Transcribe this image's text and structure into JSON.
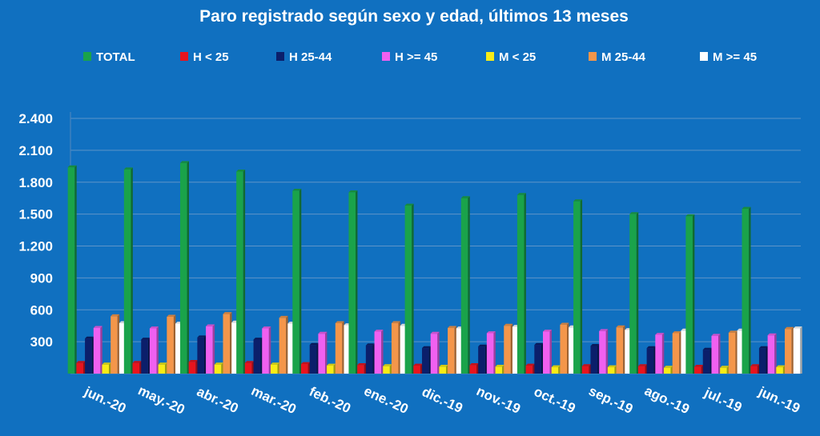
{
  "chart_data": {
    "type": "bar",
    "title": "Paro registrado según sexo y edad, últimos 13 meses",
    "categories": [
      "jun.-20",
      "may.-20",
      "abr.-20",
      "mar.-20",
      "feb.-20",
      "ene.-20",
      "dic.-19",
      "nov.-19",
      "oct.-19",
      "sep.-19",
      "ago.-19",
      "jul.-19",
      "jun.-19"
    ],
    "series": [
      {
        "name": "TOTAL",
        "color": "#1aa34a",
        "values": [
          1940,
          1920,
          1980,
          1900,
          1720,
          1705,
          1580,
          1650,
          1680,
          1620,
          1500,
          1480,
          1550
        ]
      },
      {
        "name": "H < 25",
        "color": "#e8141e",
        "values": [
          100,
          100,
          110,
          100,
          90,
          80,
          75,
          80,
          75,
          70,
          70,
          65,
          70
        ]
      },
      {
        "name": "H 25-44",
        "color": "#0b1f6b",
        "values": [
          330,
          320,
          340,
          320,
          270,
          265,
          240,
          255,
          270,
          260,
          240,
          225,
          240
        ]
      },
      {
        "name": "H >= 45",
        "color": "#f060f0",
        "values": [
          430,
          425,
          445,
          425,
          375,
          395,
          375,
          380,
          395,
          400,
          365,
          355,
          360
        ]
      },
      {
        "name": "M < 25",
        "color": "#f8ec16",
        "values": [
          85,
          85,
          85,
          85,
          75,
          70,
          65,
          65,
          60,
          60,
          55,
          55,
          60
        ]
      },
      {
        "name": "M 25-44",
        "color": "#f4964a",
        "values": [
          540,
          535,
          560,
          525,
          475,
          475,
          430,
          450,
          460,
          435,
          380,
          385,
          420
        ]
      },
      {
        "name": "M >= 45",
        "color": "#ffffff",
        "values": [
          475,
          470,
          480,
          470,
          455,
          450,
          425,
          440,
          435,
          410,
          405,
          405,
          425
        ]
      }
    ],
    "ylim": [
      0,
      2400
    ],
    "yticks": [
      300,
      600,
      900,
      1200,
      1500,
      1800,
      2100,
      2400
    ],
    "ytick_labels": [
      "300",
      "600",
      "900",
      "1.200",
      "1.500",
      "1.800",
      "2.100",
      "2.400"
    ],
    "grid": true,
    "legend_position": "top",
    "background_color": "#1070c0"
  }
}
